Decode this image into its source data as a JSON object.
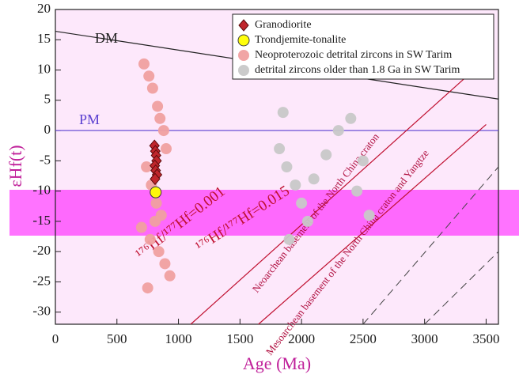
{
  "chart_data": {
    "type": "scatter",
    "x_label": "Age (Ma)",
    "y_label": "εHf(t)",
    "xlim": [
      0,
      3600
    ],
    "xticks": [
      0,
      500,
      1000,
      1500,
      2000,
      2500,
      3000,
      3500
    ],
    "ylim": [
      -32,
      20
    ],
    "yticks": [
      -30,
      -25,
      -20,
      -15,
      -10,
      -5,
      0,
      5,
      10,
      15,
      20
    ],
    "legend": "top-right",
    "series": [
      {
        "name": "Granodiorite",
        "color": "#c0262c",
        "marker": "diamond",
        "x": [
          805,
          812,
          818,
          822,
          808,
          815,
          826,
          810
        ],
        "values": [
          -2.5,
          -3.4,
          -4.1,
          -5.0,
          -5.8,
          -6.6,
          -7.3,
          -8.0
        ]
      },
      {
        "name": "Trondjemite-tonalite",
        "color": "#ffff00",
        "marker": "circle",
        "x": [
          815
        ],
        "values": [
          -10.2
        ]
      },
      {
        "name": "Neoproterozoic detrital zircons in SW Tarim",
        "color": "#f0a0a0",
        "marker": "circle",
        "x": [
          720,
          760,
          790,
          830,
          850,
          880,
          900,
          740,
          780,
          820,
          860,
          700,
          770,
          840,
          890,
          930,
          750,
          810
        ],
        "values": [
          11,
          9,
          7,
          4,
          2,
          0,
          -3,
          -6,
          -9,
          -12,
          -14,
          -16,
          -18,
          -20,
          -22,
          -24,
          -26,
          -15
        ]
      },
      {
        "name": "detrital zircons older than 1.8 Ga in SW Tarim",
        "color": "#c8c8c8",
        "marker": "circle",
        "x": [
          1820,
          1880,
          1950,
          2000,
          2050,
          2100,
          2200,
          2300,
          2400,
          2500,
          1900,
          2450,
          2550,
          1850
        ],
        "values": [
          -3,
          -6,
          -9,
          -12,
          -15,
          -8,
          -4,
          0,
          2,
          -5,
          -18,
          -10,
          -14,
          3
        ]
      }
    ],
    "reference_lines": [
      {
        "label": "DM",
        "x": [
          0,
          3600
        ],
        "y": [
          16.4,
          5.2
        ]
      },
      {
        "label": "PM",
        "x": [
          0,
          3600
        ],
        "y": [
          0,
          0
        ]
      },
      {
        "label": "¹⁷⁶Hf/¹⁷⁷Hf=0.001",
        "x": [
          1100,
          3400
        ],
        "y": [
          -32,
          10
        ]
      },
      {
        "label": "¹⁷⁶Hf/¹⁷⁷Hf=0.015",
        "x": [
          1650,
          3500
        ],
        "y": [
          -32,
          1
        ]
      }
    ],
    "annotations": [
      "Neoarchean basement of the North China craton",
      "Mesoarchean basement of the North China craton and Yangtze"
    ]
  }
}
